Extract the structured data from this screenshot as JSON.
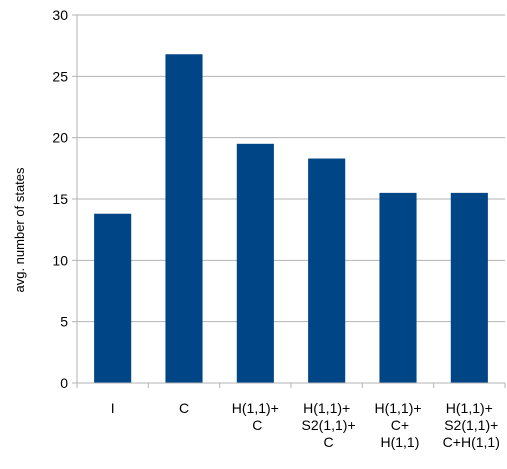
{
  "chart_data": {
    "type": "bar",
    "y_label": "avg. number of states",
    "categories": [
      "I",
      "C",
      "H(1,1)+\nC",
      "H(1,1)+\nS2(1,1)+\nC",
      "H(1,1)+\nC+\nH(1,1)",
      "H(1,1)+\nS2(1,1)+\nC+H(1,1)"
    ],
    "values": [
      13.8,
      26.8,
      19.5,
      18.3,
      15.5,
      15.5
    ],
    "color": "#004586",
    "ylim": [
      0,
      30
    ],
    "yticks": [
      0,
      5,
      10,
      15,
      20,
      25,
      30
    ],
    "grid": true
  }
}
